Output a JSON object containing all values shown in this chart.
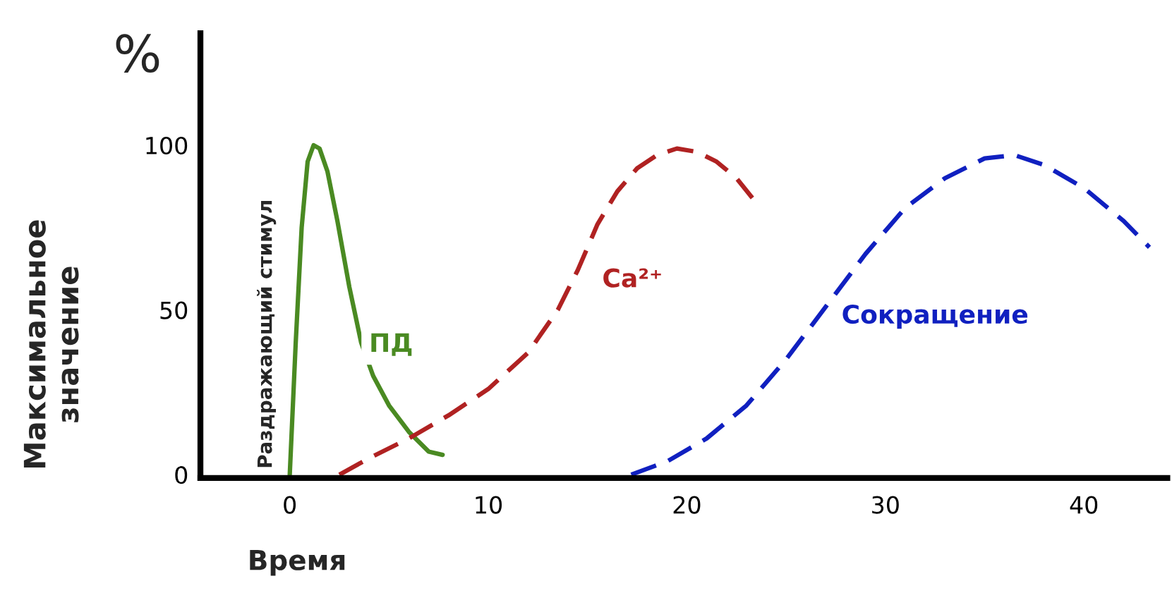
{
  "chart_data": {
    "type": "line",
    "xlabel": "Время",
    "ylabel": "Максимальное значение",
    "xlim": [
      -4.5,
      44.2
    ],
    "ylim": [
      -1,
      134
    ],
    "xticks": [
      0,
      10,
      20,
      30,
      40
    ],
    "yticks": [
      0,
      50,
      100
    ],
    "grid": false,
    "legend": false,
    "marker": "none",
    "annotations": [
      "%",
      {
        "text": "Раздражающий стимул",
        "x": 0,
        "y": 0
      }
    ],
    "series": [
      {
        "name": "ПД",
        "color": "#4a8a22",
        "line_style": "solid",
        "x": [
          0,
          0.3,
          0.6,
          0.9,
          1.2,
          1.5,
          1.9,
          2.4,
          3,
          3.6,
          4.2,
          5,
          6,
          7,
          7.7
        ],
        "values": [
          0,
          40,
          75,
          95,
          100,
          99,
          92,
          77,
          57,
          40,
          30,
          21,
          13,
          7,
          6
        ]
      },
      {
        "name": "Ca²⁺",
        "color": "#b02222",
        "line_style": "dashed",
        "x": [
          2.5,
          4,
          6,
          8,
          10,
          12,
          13.5,
          14.5,
          15.5,
          16.5,
          17.5,
          18.5,
          19.5,
          20.5,
          21.5,
          22.5,
          23.3
        ],
        "values": [
          0,
          5,
          11,
          18,
          26,
          37,
          50,
          62,
          76,
          86,
          93,
          97,
          99,
          98,
          95,
          90,
          84
        ]
      },
      {
        "name": "Сокращение",
        "color": "#1020c0",
        "line_style": "dashed",
        "x": [
          17.2,
          19,
          21,
          23,
          25,
          27,
          29,
          31,
          33,
          35,
          36.5,
          38,
          40,
          42,
          43.3
        ],
        "values": [
          0,
          4,
          11,
          21,
          35,
          51,
          67,
          81,
          90,
          96,
          97,
          94,
          87,
          77,
          69
        ]
      }
    ]
  }
}
